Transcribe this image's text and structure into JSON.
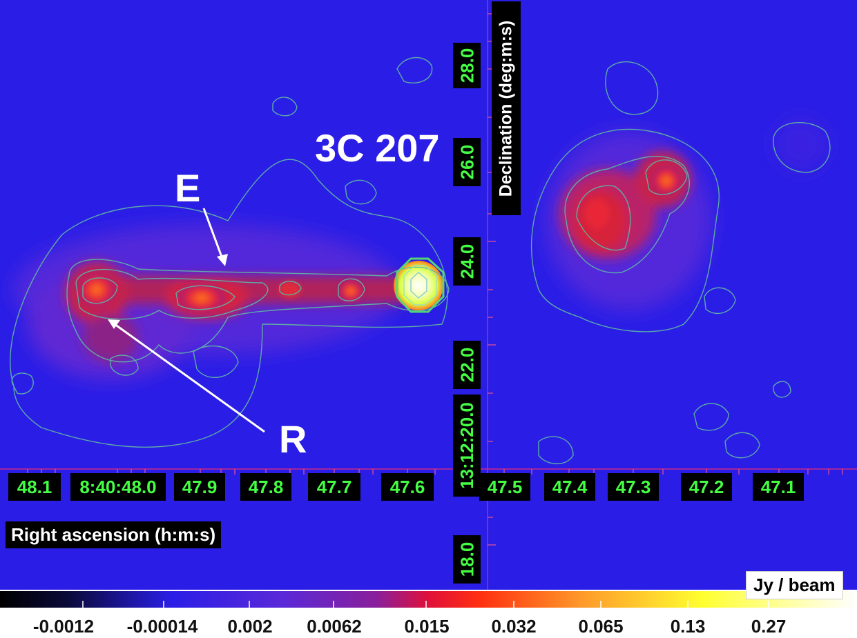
{
  "source_name": "3C 207",
  "features": [
    {
      "id": "E",
      "label": "E"
    },
    {
      "id": "R",
      "label": "R"
    }
  ],
  "axes": {
    "x_title": "Right ascension (h:m:s)",
    "y_title": "Declination (deg:m:s)",
    "x_ticks": [
      "48.1",
      "8:40:48.0",
      "47.9",
      "47.8",
      "47.7",
      "47.6",
      "47.5",
      "47.4",
      "47.3",
      "47.2",
      "47.1"
    ],
    "y_ticks": [
      "28.0",
      "26.0",
      "24.0",
      "22.0",
      "13:12:20.0",
      "18.0"
    ]
  },
  "colorbar": {
    "unit": "Jy / beam",
    "ticks": [
      "-0.0012",
      "-0.00014",
      "0.002",
      "0.0062",
      "0.015",
      "0.032",
      "0.065",
      "0.13",
      "0.27"
    ]
  },
  "colors": {
    "background": "#2a1ee6",
    "contour": "#5fb2a6",
    "tick_text": "#44ff44",
    "axis_line": "#ff2a6a"
  }
}
